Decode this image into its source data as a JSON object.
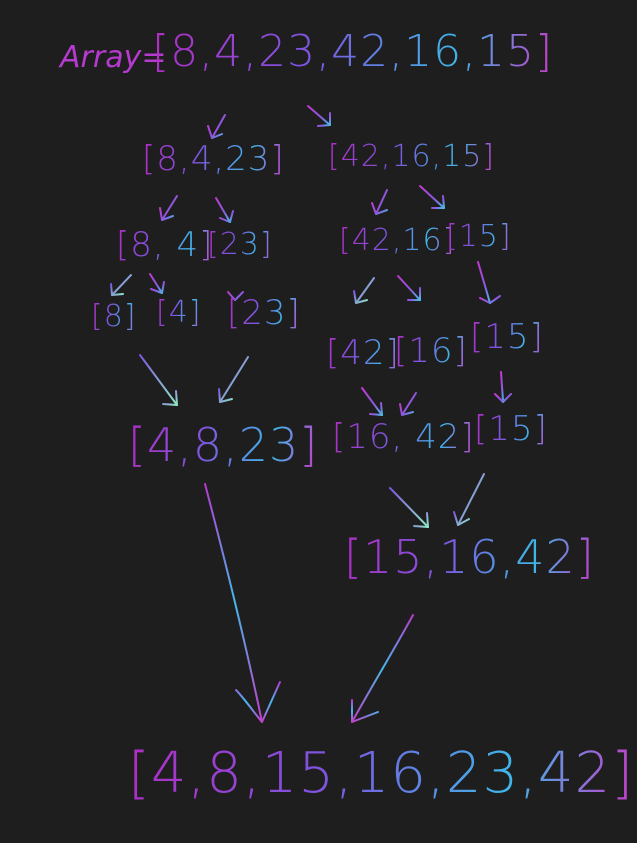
{
  "title": {
    "label": "Array=",
    "array": "[8,4,23,42,16,15]"
  },
  "split1": {
    "left": "[8,4,23]",
    "right": "[42,16,15]"
  },
  "split2": {
    "a": "[8, 4]",
    "b": "[23]",
    "c": "[42,16]",
    "d": "[15]"
  },
  "split3": {
    "a": "[8]",
    "b": "[4]",
    "c": "[23]",
    "d": "[42]",
    "e": "[16]",
    "f": "[15]"
  },
  "merge1": {
    "left": "[4,8,23]",
    "middle": "[16, 42]",
    "right": "[15]"
  },
  "merge2": {
    "right": "[15,16,42]"
  },
  "result": "[4,8,15,16,23,42]",
  "colors": {
    "background": "#1e1e1e",
    "magenta": "#b63ad0",
    "violet": "#7d56e0",
    "cyan": "#3fb6e8",
    "mint": "#8fe8c8"
  }
}
